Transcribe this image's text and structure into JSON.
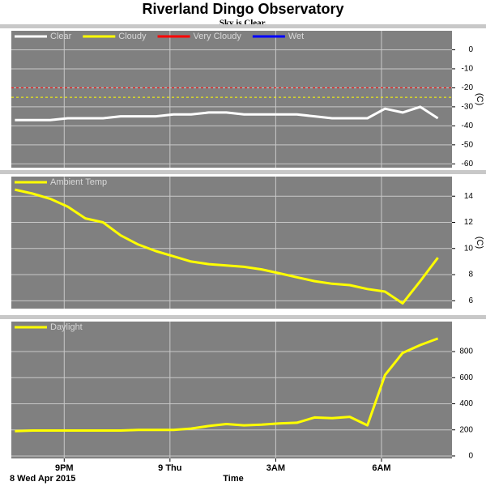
{
  "title": "Riverland Dingo Observatory",
  "subtitle": "Sky is Clear.",
  "x_axis": {
    "x": [
      19.6,
      20.1,
      20.6,
      21.1,
      21.6,
      22.1,
      22.6,
      23.1,
      23.6,
      24.1,
      24.6,
      25.1,
      25.6,
      26.1,
      26.6,
      27.1,
      27.6,
      28.1,
      28.6,
      29.1,
      29.6,
      30.1,
      30.6,
      31.1,
      31.6
    ],
    "xlim": [
      19.5,
      32
    ],
    "xticks": [
      {
        "value": 21,
        "label": "9PM"
      },
      {
        "value": 24,
        "label": "9 Thu"
      },
      {
        "value": 27,
        "label": "3AM"
      },
      {
        "value": 30,
        "label": "6AM"
      }
    ],
    "xlabel": "Time",
    "start_label": "8 Wed Apr 2015",
    "grid": true
  },
  "chart_data": [
    {
      "type": "line",
      "ylabel": "(C)",
      "ylim": [
        -62,
        10
      ],
      "yticks": [
        0,
        -10,
        -20,
        -30,
        -40,
        -50,
        -60
      ],
      "series": [
        {
          "name": "Clear",
          "color": "#ffffff",
          "values": [
            -37,
            -37,
            -37,
            -36,
            -36,
            -36,
            -35,
            -35,
            -35,
            -34,
            -34,
            -33,
            -33,
            -34,
            -34,
            -34,
            -34,
            -35,
            -36,
            -36,
            -36,
            -31,
            -33,
            -30,
            -36
          ]
        },
        {
          "name": "Cloudy",
          "color": "#ffff00",
          "threshold": -25
        },
        {
          "name": "Very Cloudy",
          "color": "#ff0000",
          "threshold": -20
        },
        {
          "name": "Wet",
          "color": "#0000ff"
        }
      ]
    },
    {
      "type": "line",
      "ylabel": "(C)",
      "ylim": [
        5.4,
        15.5
      ],
      "yticks": [
        14,
        12,
        10,
        8,
        6
      ],
      "series": [
        {
          "name": "Ambient Temp",
          "color": "#ffff00",
          "values": [
            14.5,
            14.2,
            13.8,
            13.2,
            12.3,
            12.0,
            11.0,
            10.3,
            9.8,
            9.4,
            9.0,
            8.8,
            8.7,
            8.6,
            8.4,
            8.1,
            7.8,
            7.5,
            7.3,
            7.2,
            6.9,
            6.7,
            5.8,
            7.5,
            9.3
          ]
        }
      ]
    },
    {
      "type": "line",
      "ylim": [
        -19,
        1030
      ],
      "yticks": [
        800,
        600,
        400,
        200,
        0
      ],
      "series": [
        {
          "name": "Daylight",
          "color": "#ffff00",
          "values": [
            190,
            195,
            195,
            195,
            195,
            195,
            195,
            200,
            200,
            200,
            210,
            230,
            245,
            235,
            240,
            250,
            255,
            295,
            290,
            300,
            235,
            620,
            790,
            850,
            900
          ]
        }
      ]
    }
  ]
}
